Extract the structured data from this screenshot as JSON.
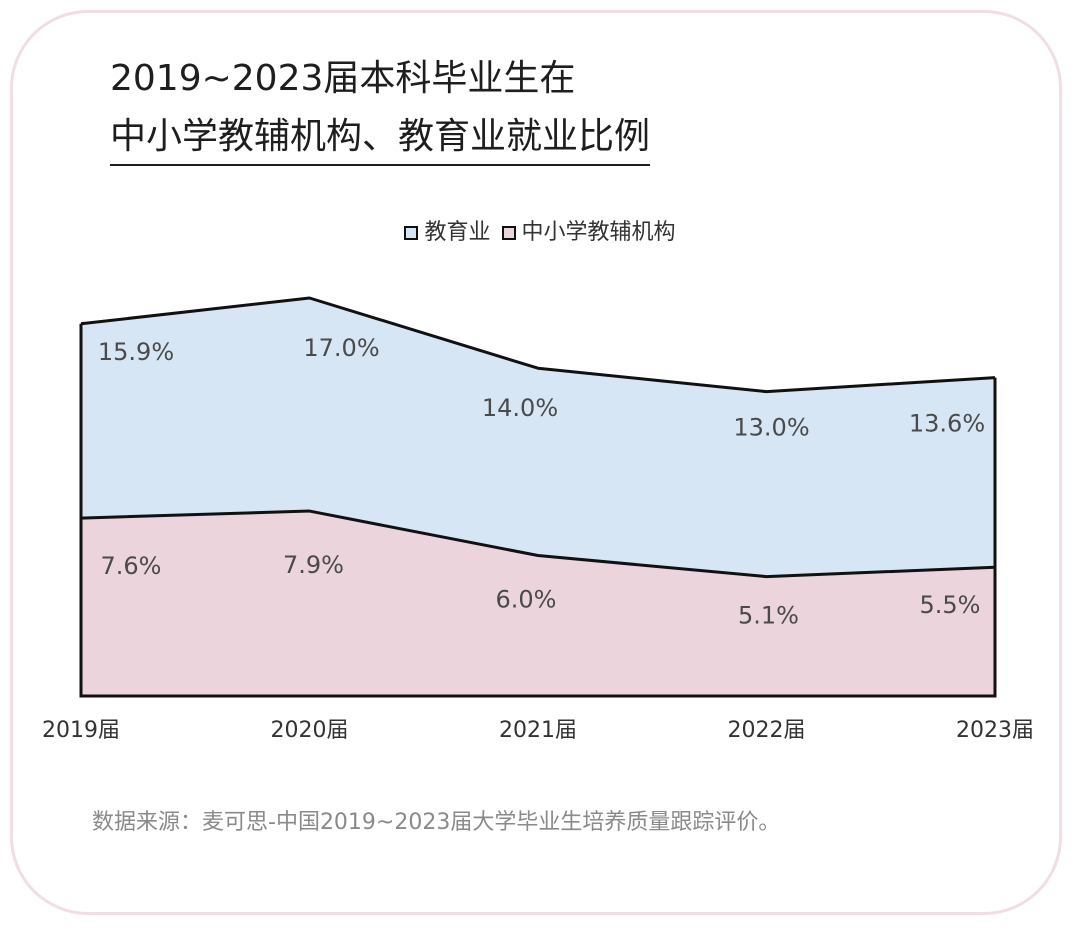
{
  "chart_data": {
    "type": "area",
    "title_line1": "2019~2023届本科毕业生在",
    "title_line2": "中小学教辅机构、教育业就业比例",
    "categories": [
      "2019届",
      "2020届",
      "2021届",
      "2022届",
      "2023届"
    ],
    "series": [
      {
        "name": "教育业",
        "values": [
          15.9,
          17.0,
          14.0,
          13.0,
          13.6
        ],
        "labels": [
          "15.9%",
          "17.0%",
          "14.0%",
          "13.0%",
          "13.6%"
        ],
        "color": "#d6e6f4"
      },
      {
        "name": "中小学教辅机构",
        "values": [
          7.6,
          7.9,
          6.0,
          5.1,
          5.5
        ],
        "labels": [
          "7.6%",
          "7.9%",
          "6.0%",
          "5.1%",
          "5.5%"
        ],
        "color": "#ecd4dc"
      }
    ],
    "ylim": [
      0,
      17.0
    ],
    "grid": false,
    "legend_position": "top-center",
    "outline_color": "#111111"
  },
  "source_note": "数据来源：麦可思-中国2019~2023届大学毕业生培养质量跟踪评价。",
  "card_border_color": "#f1dde2"
}
